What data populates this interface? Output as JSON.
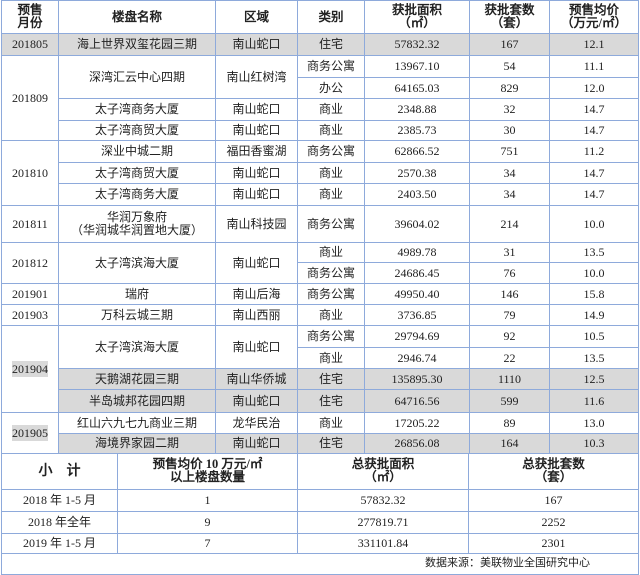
{
  "header": {
    "month": "预售\n月份",
    "name": "楼盘名称",
    "region": "区域",
    "type": "类别",
    "area": "获批面积\n（㎡）",
    "units": "获批套数\n（套）",
    "price": "预售均价\n（万元/㎡）"
  },
  "groups": [
    {
      "month": "201805",
      "highlight_month": false,
      "projects": [
        {
          "name": "海上世界双玺花园三期",
          "region": "南山蛇口",
          "shaded": true,
          "types": [
            {
              "type": "住宅",
              "area": "57832.32",
              "units": "167",
              "price": "12.1"
            }
          ]
        }
      ]
    },
    {
      "month": "201809",
      "highlight_month": false,
      "projects": [
        {
          "name": "深湾汇云中心四期",
          "region": "南山红树湾",
          "shaded": false,
          "types": [
            {
              "type": "商务公寓",
              "area": "13967.10",
              "units": "54",
              "price": "11.1"
            },
            {
              "type": "办公",
              "area": "64165.03",
              "units": "829",
              "price": "12.0"
            }
          ]
        },
        {
          "name": "太子湾商务大厦",
          "region": "南山蛇口",
          "shaded": false,
          "types": [
            {
              "type": "商业",
              "area": "2348.88",
              "units": "32",
              "price": "14.7"
            }
          ]
        },
        {
          "name": "太子湾商贸大厦",
          "region": "南山蛇口",
          "shaded": false,
          "types": [
            {
              "type": "商业",
              "area": "2385.73",
              "units": "30",
              "price": "14.7"
            }
          ]
        }
      ]
    },
    {
      "month": "201810",
      "highlight_month": false,
      "projects": [
        {
          "name": "深业中城二期",
          "region": "福田香蜜湖",
          "shaded": false,
          "types": [
            {
              "type": "商务公寓",
              "area": "62866.52",
              "units": "751",
              "price": "11.2"
            }
          ]
        },
        {
          "name": "太子湾商贸大厦",
          "region": "南山蛇口",
          "shaded": false,
          "types": [
            {
              "type": "商业",
              "area": "2570.38",
              "units": "34",
              "price": "14.7"
            }
          ]
        },
        {
          "name": "太子湾商务大厦",
          "region": "南山蛇口",
          "shaded": false,
          "types": [
            {
              "type": "商业",
              "area": "2403.50",
              "units": "34",
              "price": "14.7"
            }
          ]
        }
      ]
    },
    {
      "month": "201811",
      "highlight_month": false,
      "projects": [
        {
          "name": "华润万象府\n（华润城华润置地大厦）",
          "region": "南山科技园",
          "shaded": false,
          "types": [
            {
              "type": "商务公寓",
              "area": "39604.02",
              "units": "214",
              "price": "10.0"
            }
          ]
        }
      ]
    },
    {
      "month": "201812",
      "highlight_month": false,
      "projects": [
        {
          "name": "太子湾滨海大厦",
          "region": "南山蛇口",
          "shaded": false,
          "types": [
            {
              "type": "商业",
              "area": "4989.78",
              "units": "31",
              "price": "13.5"
            },
            {
              "type": "商务公寓",
              "area": "24686.45",
              "units": "76",
              "price": "10.0"
            }
          ]
        }
      ]
    },
    {
      "month": "201901",
      "highlight_month": false,
      "projects": [
        {
          "name": "瑞府",
          "region": "南山后海",
          "shaded": false,
          "types": [
            {
              "type": "商务公寓",
              "area": "49950.40",
              "units": "146",
              "price": "15.8"
            }
          ]
        }
      ]
    },
    {
      "month": "201903",
      "highlight_month": false,
      "projects": [
        {
          "name": "万科云城三期",
          "region": "南山西丽",
          "shaded": false,
          "types": [
            {
              "type": "商业",
              "area": "3736.85",
              "units": "79",
              "price": "14.9"
            }
          ]
        }
      ]
    },
    {
      "month": "201904",
      "highlight_month": true,
      "projects": [
        {
          "name": "太子湾滨海大厦",
          "region": "南山蛇口",
          "shaded": false,
          "types": [
            {
              "type": "商务公寓",
              "area": "29794.69",
              "units": "92",
              "price": "10.5"
            },
            {
              "type": "商业",
              "area": "2946.74",
              "units": "22",
              "price": "13.5"
            }
          ]
        },
        {
          "name": "天鹅湖花园三期",
          "region": "南山华侨城",
          "shaded": true,
          "types": [
            {
              "type": "住宅",
              "area": "135895.30",
              "units": "1110",
              "price": "12.5"
            }
          ]
        },
        {
          "name": "半岛城邦花园四期",
          "region": "南山蛇口",
          "shaded": true,
          "types": [
            {
              "type": "住宅",
              "area": "64716.56",
              "units": "599",
              "price": "11.6"
            }
          ]
        }
      ]
    },
    {
      "month": "201905",
      "highlight_month": true,
      "projects": [
        {
          "name": "红山六九七九商业三期",
          "region": "龙华民治",
          "shaded": false,
          "types": [
            {
              "type": "商业",
              "area": "17205.22",
              "units": "89",
              "price": "13.0"
            }
          ]
        },
        {
          "name": "海境界家园二期",
          "region": "南山蛇口",
          "shaded": true,
          "types": [
            {
              "type": "住宅",
              "area": "26856.08",
              "units": "164",
              "price": "10.3"
            }
          ]
        }
      ]
    }
  ],
  "summary": {
    "header": {
      "label": "小    计",
      "count": "预售均价 10 万元/㎡\n以上楼盘数量",
      "area": "总获批面积\n（㎡）",
      "units": "总获批套数\n（套）"
    },
    "rows": [
      {
        "period": "2018 年 1-5 月",
        "count": "1",
        "area": "57832.32",
        "units": "167"
      },
      {
        "period": "2018 年全年",
        "count": "9",
        "area": "277819.71",
        "units": "2252"
      },
      {
        "period": "2019 年 1-5 月",
        "count": "7",
        "area": "331101.84",
        "units": "2301"
      }
    ],
    "source": "数据来源：美联物业全国研究中心"
  },
  "colors": {
    "border": "#8eaadb",
    "shade": "#d9d9d9"
  }
}
